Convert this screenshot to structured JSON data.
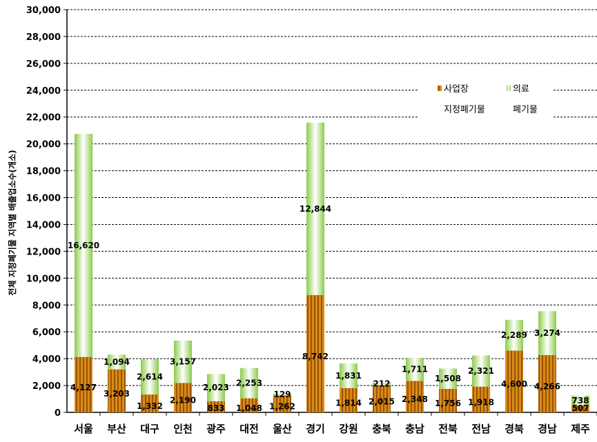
{
  "chart_data": {
    "type": "bar",
    "stacked": true,
    "ylabel": "전체 지정폐기물 지역별 배출업소수(개소)",
    "ylim": [
      0,
      30000
    ],
    "ytick_step": 2000,
    "categories": [
      "서울",
      "부산",
      "대구",
      "인천",
      "광주",
      "대전",
      "울산",
      "경기",
      "강원",
      "충북",
      "충남",
      "전북",
      "전남",
      "경북",
      "경남",
      "제주"
    ],
    "series": [
      {
        "name": "사업장 지정폐기물",
        "color": "#C8780A",
        "values": [
          4127,
          3203,
          1332,
          2190,
          833,
          1048,
          1262,
          8742,
          1814,
          2015,
          2348,
          1756,
          1918,
          4600,
          4266,
          507
        ]
      },
      {
        "name": "의료 폐기물",
        "color": "#B8E08C",
        "values": [
          16620,
          1094,
          2614,
          3157,
          2023,
          2253,
          129,
          12844,
          1831,
          212,
          1711,
          1508,
          2321,
          2289,
          3274,
          738
        ]
      }
    ],
    "legend": {
      "position": "top-right",
      "items": [
        {
          "lines": [
            "사업장",
            "지정폐기물"
          ]
        },
        {
          "lines": [
            "의료",
            "폐기물"
          ]
        }
      ]
    },
    "grid": true
  }
}
